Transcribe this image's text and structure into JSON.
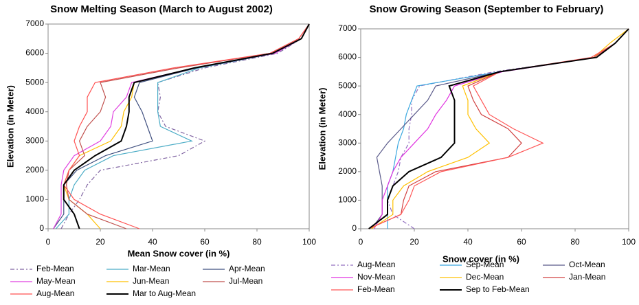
{
  "chart_data": [
    {
      "type": "line",
      "title": "Snow Melting Season (March to August 2002)",
      "x_label": "Mean Snow cover (in %)",
      "y_label": "Elevation (in Meter)",
      "xlim": [
        0,
        100
      ],
      "ylim": [
        0,
        7000
      ],
      "xticks": [
        0,
        20,
        40,
        60,
        80,
        100
      ],
      "yticks": [
        0,
        1000,
        2000,
        3000,
        4000,
        5000,
        6000,
        7000
      ],
      "y": [
        0,
        500,
        1000,
        1500,
        2000,
        2500,
        3000,
        3500,
        4000,
        4500,
        5000,
        5500,
        6000,
        6500,
        7000
      ],
      "series": [
        {
          "name": "Feb-Mean",
          "color": "#8064a2",
          "dashed": true,
          "values": [
            5,
            8,
            12,
            15,
            20,
            50,
            60,
            45,
            42,
            43,
            42,
            60,
            88,
            97,
            100
          ]
        },
        {
          "name": "Mar-Mean",
          "color": "#4bacc6",
          "dashed": false,
          "values": [
            3,
            8,
            8,
            10,
            14,
            25,
            55,
            43,
            42,
            42,
            42,
            58,
            87,
            97,
            100
          ]
        },
        {
          "name": "Apr-Mean",
          "color": "#3f4f7f",
          "dashed": false,
          "values": [
            2,
            6,
            6,
            6,
            11,
            22,
            40,
            38,
            36,
            33,
            35,
            57,
            87,
            97,
            100
          ]
        },
        {
          "name": "May-Mean",
          "color": "#e040e0",
          "dashed": false,
          "values": [
            2,
            5,
            5,
            5,
            6,
            10,
            20,
            24,
            25,
            30,
            32,
            56,
            87,
            97,
            100
          ]
        },
        {
          "name": "Jun-Mean",
          "color": "#ffc000",
          "dashed": false,
          "values": [
            20,
            15,
            8,
            6,
            8,
            12,
            24,
            28,
            29,
            32,
            33,
            56,
            86,
            97,
            100
          ]
        },
        {
          "name": "Jul-Mean",
          "color": "#c0504d",
          "dashed": false,
          "values": [
            30,
            15,
            8,
            7,
            8,
            14,
            12,
            15,
            20,
            22,
            20,
            50,
            85,
            96,
            100
          ]
        },
        {
          "name": "Aug-Mean",
          "color": "#ff5050",
          "dashed": false,
          "values": [
            35,
            20,
            10,
            6,
            8,
            12,
            10,
            12,
            15,
            15,
            18,
            48,
            85,
            96,
            100
          ]
        },
        {
          "name": "Mar to Aug-Mean",
          "color": "#000000",
          "dashed": false,
          "values": [
            12,
            10,
            6,
            6,
            10,
            18,
            28,
            30,
            31,
            31,
            33,
            56,
            86,
            97,
            100
          ]
        }
      ]
    },
    {
      "type": "line",
      "title": "Snow Growing Season (September  to February)",
      "x_label": "Snow cover (in %)",
      "y_label": "Elevation (in Meter)",
      "xlim": [
        0,
        100
      ],
      "ylim": [
        0,
        7000
      ],
      "xticks": [
        0,
        20,
        40,
        60,
        80,
        100
      ],
      "yticks": [
        0,
        1000,
        2000,
        3000,
        4000,
        5000,
        6000,
        7000
      ],
      "y": [
        0,
        500,
        1000,
        1500,
        2000,
        2500,
        3000,
        3500,
        4000,
        4500,
        5000,
        5500,
        6000,
        6500,
        7000
      ],
      "series": [
        {
          "name": "Aug-Mean",
          "color": "#9370c0",
          "dashed": true,
          "values": [
            20,
            12,
            10,
            12,
            14,
            15,
            18,
            18,
            19,
            19,
            22,
            50,
            88,
            95,
            100
          ]
        },
        {
          "name": "Sep-Mean",
          "color": "#3aa8e0",
          "dashed": false,
          "values": [
            10,
            10,
            10,
            10,
            12,
            13,
            14,
            16,
            17,
            19,
            21,
            52,
            88,
            95,
            100
          ]
        },
        {
          "name": "Oct-Mean",
          "color": "#5a5a8a",
          "dashed": false,
          "values": [
            4,
            8,
            8,
            8,
            7,
            6,
            10,
            15,
            20,
            25,
            28,
            52,
            88,
            95,
            100
          ]
        },
        {
          "name": "Nov-Mean",
          "color": "#e030e0",
          "dashed": false,
          "values": [
            5,
            8,
            8,
            10,
            12,
            15,
            20,
            25,
            28,
            32,
            35,
            53,
            88,
            95,
            100
          ]
        },
        {
          "name": "Dec-Mean",
          "color": "#ffc000",
          "dashed": false,
          "values": [
            4,
            12,
            12,
            16,
            25,
            40,
            48,
            43,
            40,
            40,
            38,
            52,
            87,
            93,
            100
          ]
        },
        {
          "name": "Jan-Mean",
          "color": "#d04040",
          "dashed": false,
          "values": [
            3,
            15,
            16,
            18,
            28,
            55,
            60,
            55,
            45,
            42,
            40,
            52,
            87,
            95,
            100
          ]
        },
        {
          "name": "Feb-Mean",
          "color": "#ff5555",
          "dashed": false,
          "values": [
            3,
            15,
            18,
            20,
            30,
            55,
            68,
            57,
            48,
            45,
            42,
            52,
            86,
            95,
            100
          ]
        },
        {
          "name": "Sep to Feb-Mean",
          "color": "#000000",
          "dashed": false,
          "values": [
            3,
            10,
            10,
            12,
            18,
            30,
            35,
            35,
            35,
            35,
            33,
            52,
            88,
            95,
            100
          ]
        }
      ]
    }
  ]
}
